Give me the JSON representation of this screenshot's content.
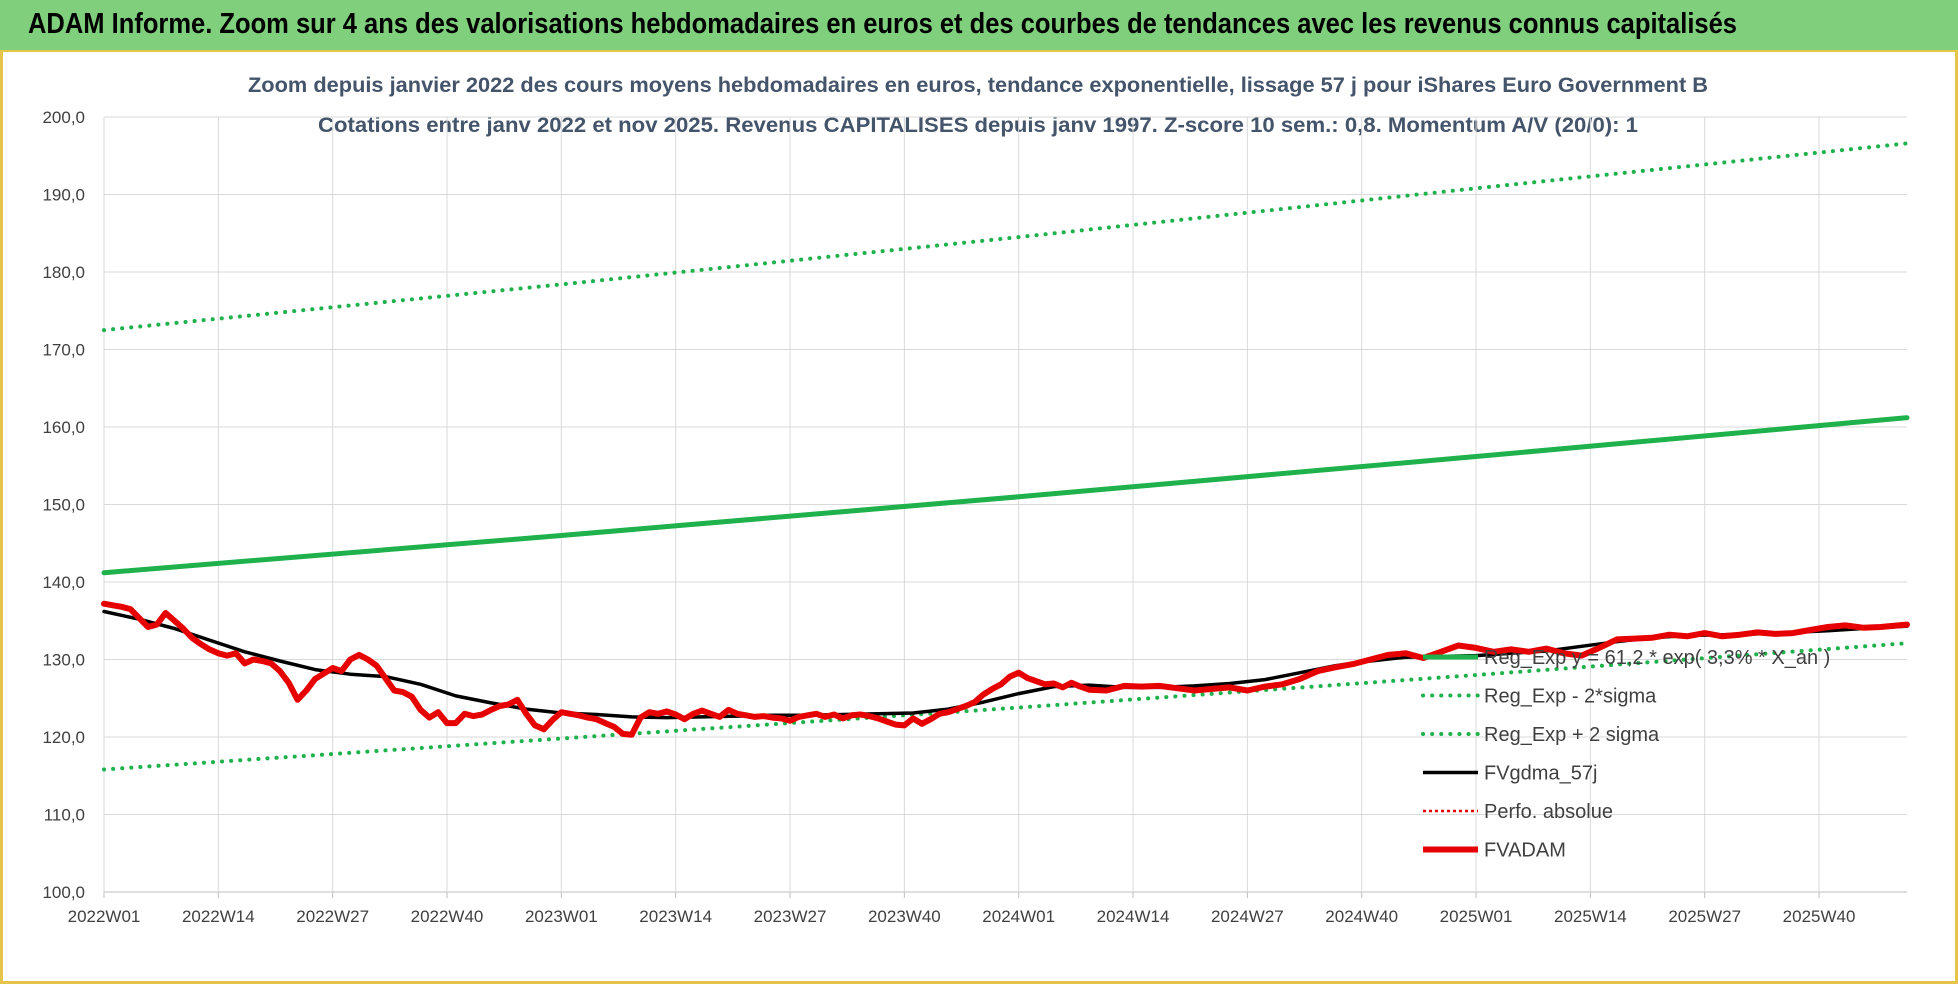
{
  "header": {
    "title": "ADAM Informe. Zoom sur 4 ans des valorisations hebdomadaires en euros et des courbes de tendances avec les revenus connus capitalisés"
  },
  "chart_data": {
    "type": "line",
    "title": "Zoom depuis janvier 2022 des cours moyens hebdomadaires en euros, tendance exponentielle, lissage 57 j pour iShares Euro Government B",
    "subtitle": "Cotations entre janv 2022 et nov 2025. Revenus CAPITALISES depuis janv 1997. Z-score 10 sem.: 0,8. Momentum A/V (20/0): 1",
    "xlabel": "",
    "ylabel": "",
    "ylim": [
      100,
      200
    ],
    "yticks": [
      "100,0",
      "110,0",
      "120,0",
      "130,0",
      "140,0",
      "150,0",
      "160,0",
      "170,0",
      "180,0",
      "190,0",
      "200,0"
    ],
    "xtick_labels": [
      "2022W01",
      "2022W14",
      "2022W27",
      "2022W40",
      "2023W01",
      "2023W14",
      "2023W27",
      "2023W40",
      "2024W01",
      "2024W14",
      "2024W27",
      "2024W40",
      "2025W01",
      "2025W14",
      "2025W27",
      "2025W40"
    ],
    "xtick_index": [
      0,
      13,
      26,
      39,
      52,
      65,
      78,
      91,
      104,
      117,
      130,
      143,
      156,
      169,
      182,
      195
    ],
    "n_weeks": 206,
    "legend_position": "right",
    "series": [
      {
        "name": "Reg_Exp  y = 61,2 * exp( 3,3% * X_an )",
        "style": "solid",
        "color": "#1fb14c",
        "width": 5,
        "x": [
          0,
          52,
          104,
          156,
          205
        ],
        "values": [
          141.2,
          146.0,
          151.0,
          156.2,
          161.2
        ]
      },
      {
        "name": "Reg_Exp - 2*sigma",
        "style": "dotted",
        "color": "#1fb14c",
        "width": 4,
        "x": [
          0,
          52,
          104,
          156,
          205
        ],
        "values": [
          115.8,
          119.8,
          123.8,
          128.0,
          132.1
        ]
      },
      {
        "name": "Reg_Exp + 2 sigma",
        "style": "dotted",
        "color": "#1fb14c",
        "width": 4,
        "x": [
          0,
          52,
          104,
          156,
          205
        ],
        "values": [
          172.5,
          178.4,
          184.5,
          190.8,
          196.6
        ]
      },
      {
        "name": "FVgdma_57j",
        "style": "solid",
        "color": "#000000",
        "width": 3.5,
        "x": [
          0,
          4,
          8,
          12,
          16,
          20,
          24,
          28,
          32,
          36,
          40,
          44,
          48,
          52,
          56,
          60,
          64,
          68,
          72,
          76,
          80,
          84,
          88,
          92,
          96,
          100,
          104,
          108,
          112,
          116,
          120,
          124,
          128,
          132,
          136,
          140,
          144,
          148,
          152,
          156,
          160,
          164,
          168,
          172,
          176,
          180,
          184,
          188,
          192,
          196,
          200,
          205
        ],
        "values": [
          136.2,
          135.2,
          134.0,
          132.5,
          131.0,
          129.8,
          128.7,
          128.1,
          127.8,
          126.8,
          125.3,
          124.4,
          123.6,
          123.1,
          122.9,
          122.6,
          122.5,
          122.6,
          122.7,
          122.8,
          122.8,
          122.9,
          123.0,
          123.1,
          123.6,
          124.5,
          125.6,
          126.5,
          126.7,
          126.4,
          126.4,
          126.6,
          126.9,
          127.4,
          128.3,
          129.2,
          129.8,
          130.3,
          130.4,
          130.5,
          130.8,
          131.1,
          131.7,
          132.3,
          132.8,
          133.1,
          133.2,
          133.3,
          133.5,
          133.7,
          134.0,
          134.3
        ]
      },
      {
        "name": "Perfo. absolue",
        "style": "dotted",
        "color": "#e60000",
        "width": 2.5,
        "x": [
          0,
          1,
          2,
          3,
          5,
          6,
          7,
          8,
          9,
          10,
          11,
          12,
          13,
          14,
          15,
          16,
          17,
          18,
          19,
          20,
          21,
          22,
          23,
          24,
          25,
          26,
          27,
          28,
          29,
          30,
          31,
          32,
          33,
          34,
          35,
          36,
          37,
          38,
          39,
          40,
          41,
          42,
          43,
          44,
          45,
          46,
          47,
          48,
          49,
          50,
          51,
          52,
          53,
          54,
          55,
          56,
          57,
          58,
          59,
          60,
          61,
          62,
          63,
          64,
          65,
          66,
          67,
          68,
          69,
          70,
          71,
          72,
          73,
          74,
          75,
          76,
          77,
          78,
          79,
          80,
          81,
          82,
          83,
          84,
          85,
          86,
          87,
          88,
          89,
          90,
          91,
          92,
          93,
          94,
          95,
          96,
          97,
          98,
          99,
          100,
          101,
          102,
          103,
          104,
          105,
          106,
          107,
          108,
          109,
          110,
          111,
          112,
          114,
          116,
          118,
          120,
          122,
          124,
          126,
          128,
          130,
          132,
          134,
          136,
          138,
          140,
          142,
          144,
          146,
          148,
          150,
          152,
          154,
          156,
          158,
          160,
          162,
          164,
          166,
          168,
          170,
          172,
          174,
          176,
          178,
          180,
          182,
          184,
          186,
          188,
          190,
          192,
          194,
          196,
          198,
          200,
          202,
          205
        ],
        "values": [
          137.2,
          137.0,
          136.8,
          136.5,
          134.2,
          134.5,
          136.0,
          135.0,
          134.0,
          132.8,
          132.0,
          131.3,
          130.8,
          130.5,
          130.8,
          129.5,
          130.0,
          129.8,
          129.5,
          128.5,
          127.0,
          124.8,
          126.0,
          127.5,
          128.2,
          128.9,
          128.5,
          130.0,
          130.6,
          130.0,
          129.2,
          127.6,
          126.0,
          125.8,
          125.2,
          123.5,
          122.5,
          123.2,
          121.8,
          121.8,
          123.0,
          122.7,
          122.9,
          123.5,
          124.0,
          124.2,
          124.8,
          123.0,
          121.5,
          121.0,
          122.2,
          123.2,
          123.0,
          122.8,
          122.5,
          122.3,
          121.8,
          121.3,
          120.4,
          120.3,
          122.5,
          123.2,
          123.0,
          123.3,
          122.9,
          122.3,
          123.0,
          123.4,
          123.0,
          122.6,
          123.5,
          123.0,
          122.8,
          122.6,
          122.7,
          122.5,
          122.4,
          122.1,
          122.6,
          122.8,
          123.0,
          122.6,
          122.9,
          122.4,
          122.8,
          122.9,
          122.7,
          122.4,
          122.0,
          121.6,
          121.5,
          122.4,
          121.7,
          122.3,
          123.0,
          123.2,
          123.6,
          124.0,
          124.5,
          125.5,
          126.2,
          126.8,
          127.8,
          128.3,
          127.6,
          127.2,
          126.8,
          126.9,
          126.4,
          127.0,
          126.5,
          126.1,
          126.0,
          126.6,
          126.5,
          126.6,
          126.3,
          126.0,
          126.2,
          126.4,
          126.0,
          126.5,
          126.8,
          127.5,
          128.5,
          129.0,
          129.4,
          130.0,
          130.6,
          130.8,
          130.2,
          131.0,
          131.8,
          131.5,
          131.0,
          131.3,
          131.0,
          131.4,
          130.8,
          130.5,
          131.5,
          132.6,
          132.7,
          132.8,
          133.2,
          133.0,
          133.4,
          133.0,
          133.2,
          133.5,
          133.3,
          133.4,
          133.8,
          134.2,
          134.4,
          134.1,
          134.2,
          134.5
        ]
      },
      {
        "name": "FVADAM",
        "style": "solid",
        "color": "#e60000",
        "width": 6,
        "x": [
          0,
          1,
          2,
          3,
          5,
          6,
          7,
          8,
          9,
          10,
          11,
          12,
          13,
          14,
          15,
          16,
          17,
          18,
          19,
          20,
          21,
          22,
          23,
          24,
          25,
          26,
          27,
          28,
          29,
          30,
          31,
          32,
          33,
          34,
          35,
          36,
          37,
          38,
          39,
          40,
          41,
          42,
          43,
          44,
          45,
          46,
          47,
          48,
          49,
          50,
          51,
          52,
          53,
          54,
          55,
          56,
          57,
          58,
          59,
          60,
          61,
          62,
          63,
          64,
          65,
          66,
          67,
          68,
          69,
          70,
          71,
          72,
          73,
          74,
          75,
          76,
          77,
          78,
          79,
          80,
          81,
          82,
          83,
          84,
          85,
          86,
          87,
          88,
          89,
          90,
          91,
          92,
          93,
          94,
          95,
          96,
          97,
          98,
          99,
          100,
          101,
          102,
          103,
          104,
          105,
          106,
          107,
          108,
          109,
          110,
          111,
          112,
          114,
          116,
          118,
          120,
          122,
          124,
          126,
          128,
          130,
          132,
          134,
          136,
          138,
          140,
          142,
          144,
          146,
          148,
          150,
          152,
          154,
          156,
          158,
          160,
          162,
          164,
          166,
          168,
          170,
          172,
          174,
          176,
          178,
          180,
          182,
          184,
          186,
          188,
          190,
          192,
          194,
          196,
          198,
          200,
          202,
          205
        ],
        "values": [
          137.2,
          137.0,
          136.8,
          136.5,
          134.2,
          134.5,
          136.0,
          135.0,
          134.0,
          132.8,
          132.0,
          131.3,
          130.8,
          130.5,
          130.8,
          129.5,
          130.0,
          129.8,
          129.5,
          128.5,
          127.0,
          124.8,
          126.0,
          127.5,
          128.2,
          128.9,
          128.5,
          130.0,
          130.6,
          130.0,
          129.2,
          127.6,
          126.0,
          125.8,
          125.2,
          123.5,
          122.5,
          123.2,
          121.8,
          121.8,
          123.0,
          122.7,
          122.9,
          123.5,
          124.0,
          124.2,
          124.8,
          123.0,
          121.5,
          121.0,
          122.2,
          123.2,
          123.0,
          122.8,
          122.5,
          122.3,
          121.8,
          121.3,
          120.4,
          120.3,
          122.5,
          123.2,
          123.0,
          123.3,
          122.9,
          122.3,
          123.0,
          123.4,
          123.0,
          122.6,
          123.5,
          123.0,
          122.8,
          122.6,
          122.7,
          122.5,
          122.4,
          122.1,
          122.6,
          122.8,
          123.0,
          122.6,
          122.9,
          122.4,
          122.8,
          122.9,
          122.7,
          122.4,
          122.0,
          121.6,
          121.5,
          122.4,
          121.7,
          122.3,
          123.0,
          123.2,
          123.6,
          124.0,
          124.5,
          125.5,
          126.2,
          126.8,
          127.8,
          128.3,
          127.6,
          127.2,
          126.8,
          126.9,
          126.4,
          127.0,
          126.5,
          126.1,
          126.0,
          126.6,
          126.5,
          126.6,
          126.3,
          126.0,
          126.2,
          126.4,
          126.0,
          126.5,
          126.8,
          127.5,
          128.5,
          129.0,
          129.4,
          130.0,
          130.6,
          130.8,
          130.2,
          131.0,
          131.8,
          131.5,
          131.0,
          131.3,
          131.0,
          131.4,
          130.8,
          130.5,
          131.5,
          132.6,
          132.7,
          132.8,
          133.2,
          133.0,
          133.4,
          133.0,
          133.2,
          133.5,
          133.3,
          133.4,
          133.8,
          134.2,
          134.4,
          134.1,
          134.2,
          134.5
        ]
      }
    ]
  }
}
